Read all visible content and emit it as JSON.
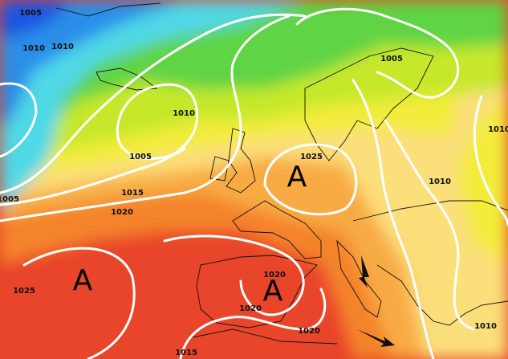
{
  "pressure_labels": [
    "1005",
    "1010",
    "1010",
    "1005",
    "1010",
    "1005",
    "1025",
    "1010",
    "1015",
    "1020",
    "1005",
    "1010",
    "1025",
    "1020",
    "1020",
    "1020",
    "1015",
    "1010"
  ],
  "high_pressure_labels": [
    "A",
    "A",
    "A"
  ]
}
